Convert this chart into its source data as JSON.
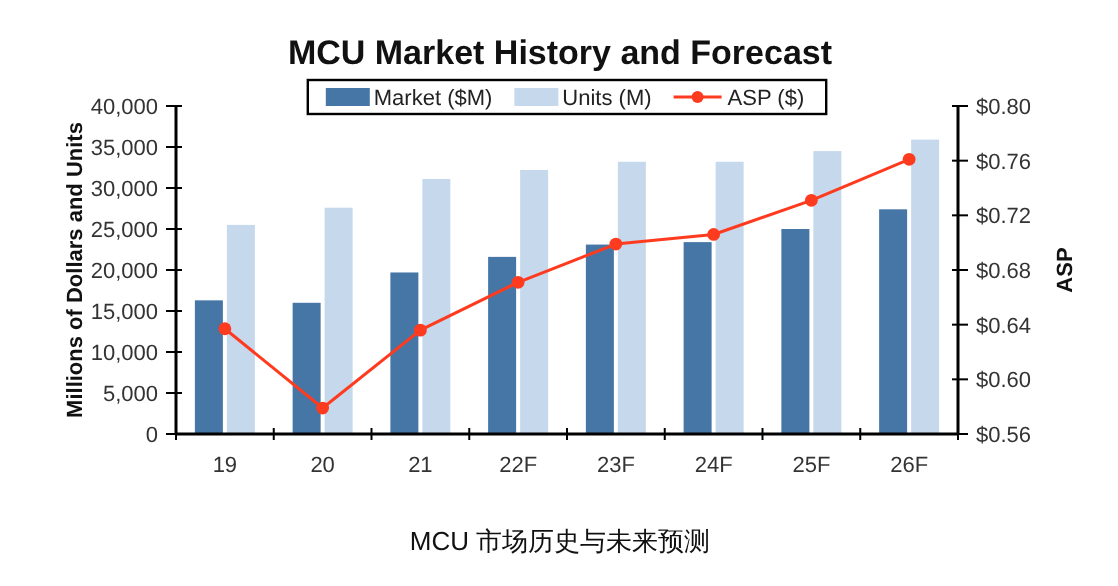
{
  "chart_data": {
    "type": "bar",
    "title": "MCU Market History and Forecast",
    "ylabel": "Millions of Dollars and Units",
    "y2label": "ASP",
    "categories": [
      "19",
      "20",
      "21",
      "22F",
      "23F",
      "24F",
      "25F",
      "26F"
    ],
    "series": [
      {
        "name": "Market ($M)",
        "color": "#4576a5",
        "values": [
          16300,
          16000,
          19700,
          21600,
          23100,
          23400,
          25000,
          27400
        ]
      },
      {
        "name": "Units (M)",
        "color": "#c6d8ec",
        "values": [
          25500,
          27600,
          31100,
          32200,
          33200,
          33200,
          34500,
          35900
        ]
      },
      {
        "name": "ASP ($)",
        "type": "line",
        "axis": "y2",
        "color": "#ff3b1f",
        "marker": "circle",
        "values": [
          0.637,
          0.579,
          0.636,
          0.671,
          0.699,
          0.706,
          0.731,
          0.761
        ]
      }
    ],
    "ylim": [
      0,
      40000
    ],
    "yticks": [
      {
        "value": 0,
        "label": "0"
      },
      {
        "value": 5000,
        "label": "5,000"
      },
      {
        "value": 10000,
        "label": "10,000"
      },
      {
        "value": 15000,
        "label": "15,000"
      },
      {
        "value": 20000,
        "label": "20,000"
      },
      {
        "value": 25000,
        "label": "25,000"
      },
      {
        "value": 30000,
        "label": "30,000"
      },
      {
        "value": 35000,
        "label": "35,000"
      },
      {
        "value": 40000,
        "label": "40,000"
      }
    ],
    "y2lim": [
      0.56,
      0.8
    ],
    "y2ticks": [
      {
        "value": 0.56,
        "label": "$0.56"
      },
      {
        "value": 0.6,
        "label": "$0.60"
      },
      {
        "value": 0.64,
        "label": "$0.64"
      },
      {
        "value": 0.68,
        "label": "$0.68"
      },
      {
        "value": 0.72,
        "label": "$0.72"
      },
      {
        "value": 0.76,
        "label": "$0.76"
      },
      {
        "value": 0.8,
        "label": "$0.80"
      }
    ],
    "legend": "top",
    "grid": false,
    "annotations": [
      "MCU 市场历史与未来预测"
    ]
  }
}
